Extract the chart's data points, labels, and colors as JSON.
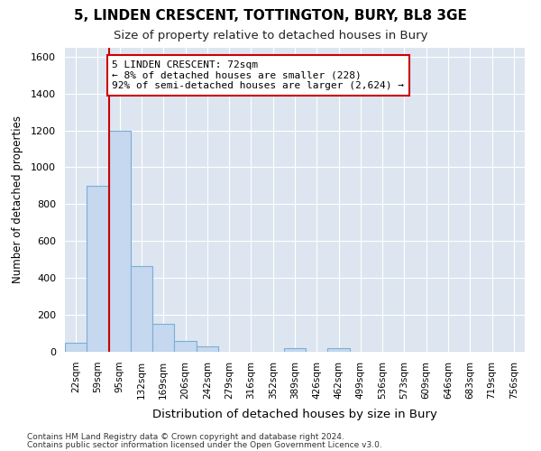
{
  "title": "5, LINDEN CRESCENT, TOTTINGTON, BURY, BL8 3GE",
  "subtitle": "Size of property relative to detached houses in Bury",
  "xlabel": "Distribution of detached houses by size in Bury",
  "ylabel": "Number of detached properties",
  "footnote1": "Contains HM Land Registry data © Crown copyright and database right 2024.",
  "footnote2": "Contains public sector information licensed under the Open Government Licence v3.0.",
  "bin_labels": [
    "22sqm",
    "59sqm",
    "95sqm",
    "132sqm",
    "169sqm",
    "206sqm",
    "242sqm",
    "279sqm",
    "316sqm",
    "352sqm",
    "389sqm",
    "426sqm",
    "462sqm",
    "499sqm",
    "536sqm",
    "573sqm",
    "609sqm",
    "646sqm",
    "683sqm",
    "719sqm",
    "756sqm"
  ],
  "bar_heights": [
    50,
    900,
    1200,
    465,
    150,
    60,
    30,
    0,
    0,
    0,
    20,
    0,
    20,
    0,
    0,
    0,
    0,
    0,
    0,
    0,
    0
  ],
  "bar_color": "#c5d8ef",
  "bar_edge_color": "#7aafd4",
  "background_color": "#dde6f0",
  "grid_color": "#ffffff",
  "vline_x": 1.5,
  "vline_color": "#cc0000",
  "annotation_text": "5 LINDEN CRESCENT: 72sqm\n← 8% of detached houses are smaller (228)\n92% of semi-detached houses are larger (2,624) →",
  "annotation_box_color": "#ffffff",
  "annotation_box_edge": "#cc0000",
  "ylim": [
    0,
    1650
  ],
  "yticks": [
    0,
    200,
    400,
    600,
    800,
    1000,
    1200,
    1400,
    1600
  ],
  "fig_bg": "#ffffff"
}
